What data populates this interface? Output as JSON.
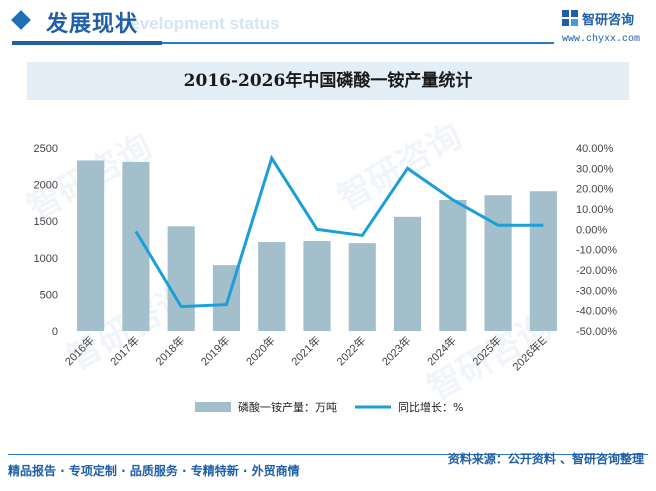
{
  "header": {
    "title": "发展现状",
    "subtitle_en": "Development status",
    "brand_name": "智研咨询",
    "brand_url": "www.chyxx.com"
  },
  "watermark_text": "智研咨询",
  "chart_data": {
    "type": "bar",
    "title": "2016-2026年中国磷酸一铵产量统计",
    "categories": [
      "2016年",
      "2017年",
      "2018年",
      "2019年",
      "2020年",
      "2021年",
      "2022年",
      "2023年",
      "2024年",
      "2025年",
      "2026年E"
    ],
    "series": [
      {
        "name": "磷酸一铵产量：万吨",
        "type": "bar",
        "axis": "left",
        "values": [
          2330,
          2310,
          1430,
          900,
          1215,
          1230,
          1200,
          1560,
          1790,
          1855,
          1910
        ]
      },
      {
        "name": "同比增长：%",
        "type": "line",
        "axis": "right",
        "values": [
          null,
          -1.0,
          -38.0,
          -37.0,
          35.0,
          0.0,
          -3.0,
          30.0,
          14.5,
          2.0,
          2.0
        ]
      }
    ],
    "y_left": {
      "min": 0,
      "max": 2500,
      "ticks": [
        "0",
        "500",
        "1000",
        "1500",
        "2000",
        "2500"
      ]
    },
    "y_right": {
      "min": -50,
      "max": 40,
      "ticks": [
        "-50.00%",
        "-40.00%",
        "-30.00%",
        "-20.00%",
        "-10.00%",
        "0.00%",
        "10.00%",
        "20.00%",
        "30.00%",
        "40.00%"
      ]
    },
    "legend_position": "bottom",
    "colors": {
      "bar": "#a3bfcc",
      "line": "#1a9fd8"
    }
  },
  "footer": {
    "left": "精品报告 · 专项定制 · 品质服务 · 专精特新 · 外贸商情",
    "right": "资料来源：公开资料 、智研咨询整理"
  }
}
